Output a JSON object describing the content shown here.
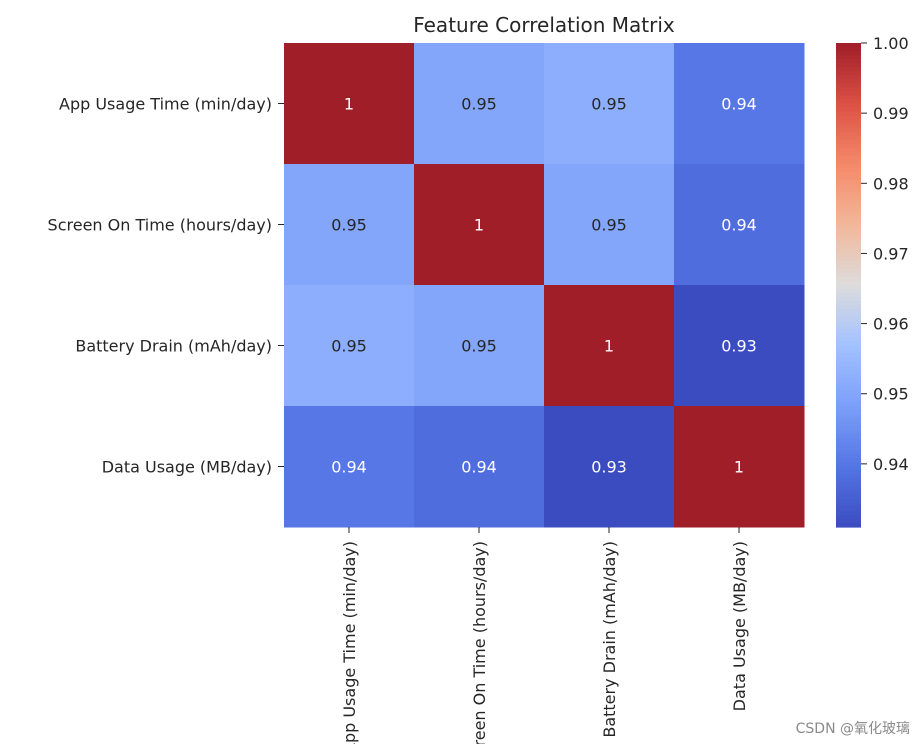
{
  "chart_data": {
    "type": "heatmap",
    "title": "Feature Correlation Matrix",
    "row_labels": [
      "App Usage Time (min/day)",
      "Screen On Time (hours/day)",
      "Battery Drain (mAh/day)",
      "Data Usage (MB/day)"
    ],
    "col_labels": [
      "App Usage Time (min/day)",
      "Screen On Time (hours/day)",
      "Battery Drain (mAh/day)",
      "Data Usage (MB/day)"
    ],
    "values": [
      [
        1.0,
        0.95,
        0.952,
        0.94
      ],
      [
        0.95,
        1.0,
        0.95,
        0.938
      ],
      [
        0.952,
        0.95,
        1.0,
        0.931
      ],
      [
        0.94,
        0.938,
        0.931,
        1.0
      ]
    ],
    "value_labels": [
      [
        "1",
        "0.95",
        "0.95",
        "0.94"
      ],
      [
        "0.95",
        "1",
        "0.95",
        "0.94"
      ],
      [
        "0.95",
        "0.95",
        "1",
        "0.93"
      ],
      [
        "0.94",
        "0.94",
        "0.93",
        "1"
      ]
    ],
    "colormap": "coolwarm",
    "colorbar": {
      "range": [
        0.931,
        1.0
      ],
      "ticks": [
        0.94,
        0.95,
        0.96,
        0.97,
        0.98,
        0.99,
        1.0
      ],
      "tick_labels": [
        "0.94",
        "0.95",
        "0.96",
        "0.97",
        "0.98",
        "0.99",
        "1.00"
      ]
    },
    "annotation_colors": {
      "light": "#ffffff",
      "dark": "#262626"
    }
  },
  "watermark": "CSDN @氧化玻璃"
}
